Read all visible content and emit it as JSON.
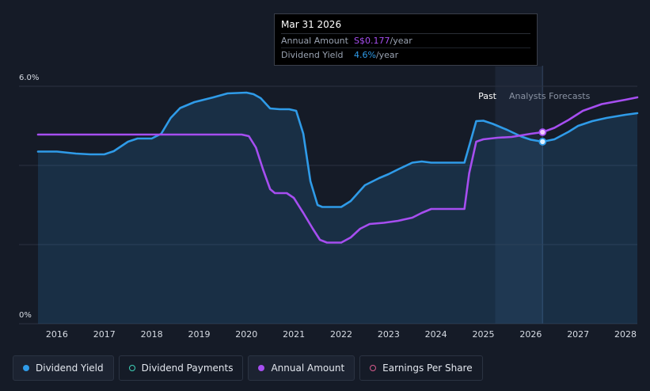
{
  "tooltip": {
    "date": "Mar 31 2026",
    "rows": [
      {
        "label": "Annual Amount",
        "value": "S$0.177",
        "unit": "/year",
        "color": "#a64ef0"
      },
      {
        "label": "Dividend Yield",
        "value": "4.6%",
        "unit": "/year",
        "color": "#2f9be8"
      }
    ]
  },
  "legend": [
    {
      "label": "Dividend Yield",
      "color": "#2f9be8",
      "style": "filled",
      "active": true,
      "icon": "filled-dot-icon"
    },
    {
      "label": "Dividend Payments",
      "color": "#3fd1b8",
      "style": "ring",
      "active": false,
      "icon": "ring-dot-icon"
    },
    {
      "label": "Annual Amount",
      "color": "#a64ef0",
      "style": "filled",
      "active": true,
      "icon": "filled-dot-icon"
    },
    {
      "label": "Earnings Per Share",
      "color": "#d65a8c",
      "style": "ring",
      "active": false,
      "icon": "ring-dot-icon"
    }
  ],
  "chart_data": {
    "type": "line",
    "y_tick_labels": [
      {
        "value": 6.0,
        "label": "6.0%"
      },
      {
        "value": 0,
        "label": "0%"
      }
    ],
    "ylim": [
      0,
      6.0
    ],
    "xlim": [
      2015.6,
      2028.25
    ],
    "x_ticks": [
      2016,
      2017,
      2018,
      2019,
      2020,
      2021,
      2022,
      2023,
      2024,
      2025,
      2026,
      2027,
      2028
    ],
    "past_label": "Past",
    "forecast_label": "Analysts Forecasts",
    "past_end": 2025.25,
    "forecast_start": 2025.4,
    "highlight_x": 2026.25,
    "series": [
      {
        "name": "Dividend Yield",
        "color": "#2f9be8",
        "fill": true,
        "points": [
          [
            2015.6,
            4.35
          ],
          [
            2016.0,
            4.35
          ],
          [
            2016.4,
            4.3
          ],
          [
            2016.7,
            4.28
          ],
          [
            2017.0,
            4.28
          ],
          [
            2017.2,
            4.36
          ],
          [
            2017.5,
            4.6
          ],
          [
            2017.7,
            4.68
          ],
          [
            2018.0,
            4.68
          ],
          [
            2018.2,
            4.8
          ],
          [
            2018.4,
            5.2
          ],
          [
            2018.6,
            5.45
          ],
          [
            2018.9,
            5.6
          ],
          [
            2019.3,
            5.72
          ],
          [
            2019.6,
            5.82
          ],
          [
            2020.0,
            5.84
          ],
          [
            2020.15,
            5.8
          ],
          [
            2020.3,
            5.7
          ],
          [
            2020.5,
            5.44
          ],
          [
            2020.7,
            5.42
          ],
          [
            2020.9,
            5.42
          ],
          [
            2021.05,
            5.38
          ],
          [
            2021.2,
            4.8
          ],
          [
            2021.35,
            3.6
          ],
          [
            2021.5,
            3.0
          ],
          [
            2021.6,
            2.95
          ],
          [
            2021.8,
            2.95
          ],
          [
            2022.0,
            2.95
          ],
          [
            2022.2,
            3.1
          ],
          [
            2022.5,
            3.5
          ],
          [
            2022.8,
            3.68
          ],
          [
            2023.0,
            3.78
          ],
          [
            2023.2,
            3.9
          ],
          [
            2023.5,
            4.07
          ],
          [
            2023.7,
            4.1
          ],
          [
            2023.9,
            4.07
          ],
          [
            2024.2,
            4.07
          ],
          [
            2024.5,
            4.07
          ],
          [
            2024.6,
            4.07
          ],
          [
            2024.75,
            4.7
          ],
          [
            2024.85,
            5.12
          ],
          [
            2025.0,
            5.13
          ],
          [
            2025.2,
            5.05
          ],
          [
            2025.5,
            4.9
          ],
          [
            2025.8,
            4.73
          ],
          [
            2026.0,
            4.65
          ],
          [
            2026.25,
            4.6
          ],
          [
            2026.5,
            4.66
          ],
          [
            2026.8,
            4.85
          ],
          [
            2027.0,
            5.0
          ],
          [
            2027.3,
            5.12
          ],
          [
            2027.6,
            5.2
          ],
          [
            2028.0,
            5.28
          ],
          [
            2028.25,
            5.32
          ]
        ]
      },
      {
        "name": "Annual Amount",
        "color": "#a64ef0",
        "fill": false,
        "points": [
          [
            2015.6,
            4.78
          ],
          [
            2016.5,
            4.78
          ],
          [
            2017.5,
            4.78
          ],
          [
            2018.5,
            4.78
          ],
          [
            2019.5,
            4.78
          ],
          [
            2019.9,
            4.78
          ],
          [
            2020.05,
            4.74
          ],
          [
            2020.2,
            4.45
          ],
          [
            2020.35,
            3.9
          ],
          [
            2020.5,
            3.4
          ],
          [
            2020.6,
            3.3
          ],
          [
            2020.85,
            3.3
          ],
          [
            2021.0,
            3.18
          ],
          [
            2021.2,
            2.8
          ],
          [
            2021.4,
            2.4
          ],
          [
            2021.55,
            2.12
          ],
          [
            2021.7,
            2.05
          ],
          [
            2022.0,
            2.05
          ],
          [
            2022.2,
            2.18
          ],
          [
            2022.4,
            2.4
          ],
          [
            2022.6,
            2.52
          ],
          [
            2022.9,
            2.55
          ],
          [
            2023.2,
            2.6
          ],
          [
            2023.5,
            2.68
          ],
          [
            2023.7,
            2.8
          ],
          [
            2023.9,
            2.9
          ],
          [
            2024.2,
            2.9
          ],
          [
            2024.4,
            2.9
          ],
          [
            2024.6,
            2.9
          ],
          [
            2024.7,
            3.8
          ],
          [
            2024.85,
            4.6
          ],
          [
            2025.0,
            4.66
          ],
          [
            2025.3,
            4.7
          ],
          [
            2025.6,
            4.72
          ],
          [
            2026.0,
            4.8
          ],
          [
            2026.25,
            4.84
          ],
          [
            2026.5,
            4.95
          ],
          [
            2026.8,
            5.15
          ],
          [
            2027.1,
            5.38
          ],
          [
            2027.5,
            5.55
          ],
          [
            2028.0,
            5.66
          ],
          [
            2028.25,
            5.72
          ]
        ]
      }
    ]
  }
}
